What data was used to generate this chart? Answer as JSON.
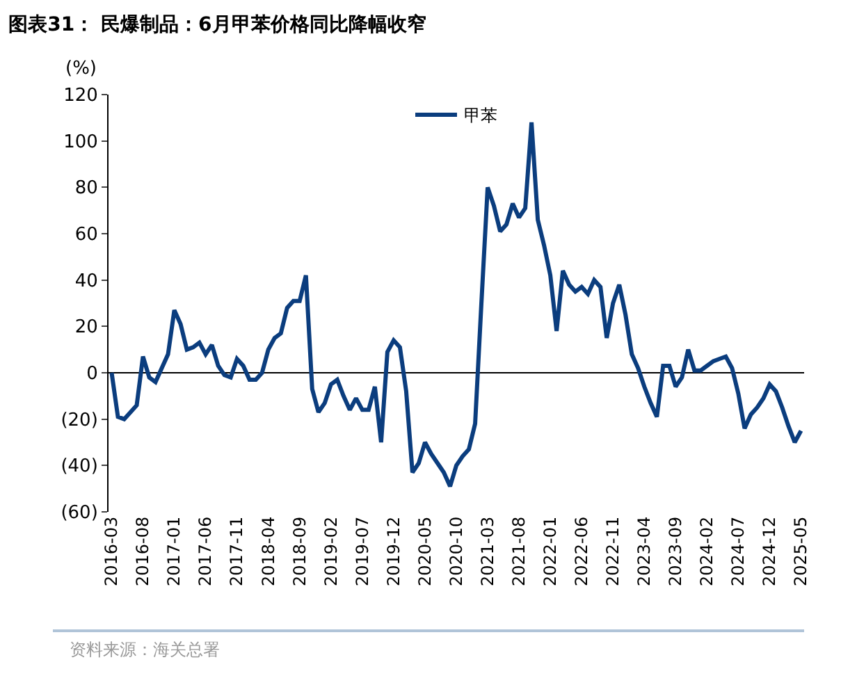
{
  "chart_data": {
    "type": "line",
    "title": "图表31： 民爆制品：6月甲苯价格同比降幅收窄",
    "ylabel": "(%)",
    "categories": [
      "2016-03",
      null,
      null,
      null,
      null,
      "2016-08",
      null,
      null,
      null,
      null,
      "2017-01",
      null,
      null,
      null,
      null,
      "2017-06",
      null,
      null,
      null,
      null,
      "2017-11",
      null,
      null,
      null,
      null,
      "2018-04",
      null,
      null,
      null,
      null,
      "2018-09",
      null,
      null,
      null,
      null,
      "2019-02",
      null,
      null,
      null,
      null,
      "2019-07",
      null,
      null,
      null,
      null,
      "2019-12",
      null,
      null,
      null,
      null,
      "2020-05",
      null,
      null,
      null,
      null,
      "2020-10",
      null,
      null,
      null,
      null,
      "2021-03",
      null,
      null,
      null,
      null,
      "2021-08",
      null,
      null,
      null,
      null,
      "2022-01",
      null,
      null,
      null,
      null,
      "2022-06",
      null,
      null,
      null,
      null,
      "2022-11",
      null,
      null,
      null,
      null,
      "2023-04",
      null,
      null,
      null,
      null,
      "2023-09",
      null,
      null,
      null,
      null,
      "2024-02",
      null,
      null,
      null,
      null,
      "2024-07",
      null,
      null,
      null,
      null,
      "2024-12",
      null,
      null,
      null,
      null,
      "2025-05"
    ],
    "series": [
      {
        "name": "甲苯",
        "color": "#0b3d7e",
        "values": [
          0,
          -19,
          -20,
          -17,
          -14,
          7,
          -2,
          -4,
          2,
          8,
          27,
          21,
          10,
          11,
          13,
          8,
          12,
          3,
          -1,
          -2,
          6,
          3,
          -3,
          -3,
          0,
          10,
          15,
          17,
          28,
          31,
          31,
          42,
          -7,
          -17,
          -13,
          -5,
          -3,
          -10,
          -16,
          -11,
          -16,
          -16,
          -6,
          -30,
          9,
          14,
          11,
          -8,
          -43,
          -39,
          -30,
          -35,
          -39,
          -43,
          -49,
          -40,
          -36,
          -33,
          -22,
          30,
          80,
          72,
          61,
          64,
          73,
          67,
          71,
          108,
          66,
          55,
          42,
          18,
          44,
          38,
          35,
          37,
          34,
          40,
          37,
          15,
          30,
          38,
          25,
          8,
          2,
          -6,
          -13,
          -19,
          3,
          3,
          -6,
          -2,
          10,
          1,
          1,
          3,
          5,
          6,
          7,
          2,
          -9,
          -24,
          -18,
          -15,
          -11,
          -5,
          -8,
          -15,
          -23,
          -30,
          -25
        ]
      }
    ],
    "ylim": [
      -60,
      120
    ],
    "yticks": [
      {
        "value": -60,
        "label": "(60)"
      },
      {
        "value": -40,
        "label": "(40)"
      },
      {
        "value": -20,
        "label": "(20)"
      },
      0,
      20,
      40,
      60,
      80,
      100,
      120
    ],
    "ref_lines": [
      {
        "axis": "y",
        "value": 0,
        "color": "#000000",
        "line_style": "solid"
      }
    ],
    "grid": false,
    "legend": "top",
    "marker": "none",
    "line_style": "solid",
    "annotations": [
      "资料来源：海关总署"
    ]
  }
}
